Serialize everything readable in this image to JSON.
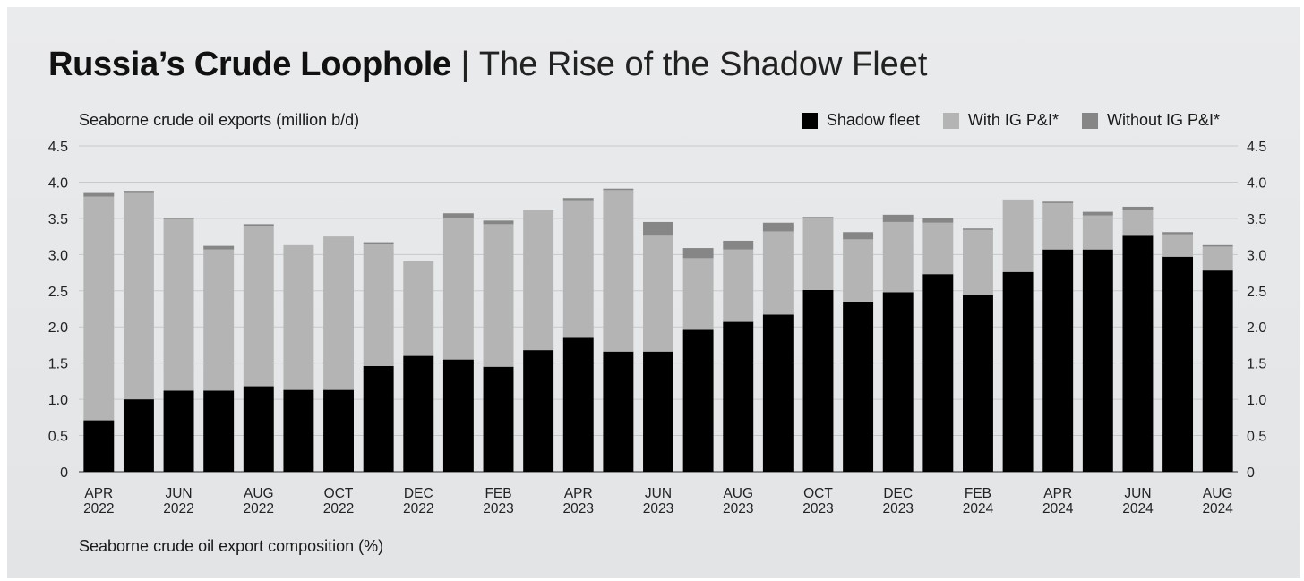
{
  "header": {
    "title_main": "Russia’s Crude Loophole",
    "title_sep": "|",
    "title_sub": "The Rise of the Shadow Fleet"
  },
  "footer": {
    "section_label": "Seaborne crude oil export composition (%)"
  },
  "colors": {
    "shadow": "#000000",
    "with_ig": "#b4b4b4",
    "without_ig": "#868686",
    "grid": "#c8c9cb",
    "background": "#e6e7e9"
  },
  "chart_data": {
    "type": "bar",
    "stacked": true,
    "ylabel": "Seaborne crude oil exports (million b/d)",
    "ylim": [
      0,
      4.5
    ],
    "yticks": [
      "0",
      "0.5",
      "1.0",
      "1.5",
      "2.0",
      "2.5",
      "3.0",
      "3.5",
      "4.0",
      "4.5"
    ],
    "grid": true,
    "legend_position": "top-right",
    "categories": [
      "APR 2022",
      "MAY 2022",
      "JUN 2022",
      "JUL 2022",
      "AUG 2022",
      "SEP 2022",
      "OCT 2022",
      "NOV 2022",
      "DEC 2022",
      "JAN 2023",
      "FEB 2023",
      "MAR 2023",
      "APR 2023",
      "MAY 2023",
      "JUN 2023",
      "JUL 2023",
      "AUG 2023",
      "SEP 2023",
      "OCT 2023",
      "NOV 2023",
      "DEC 2023",
      "JAN 2024",
      "FEB 2024",
      "MAR 2024",
      "APR 2024",
      "MAY 2024",
      "JUN 2024",
      "JUL 2024",
      "AUG 2024"
    ],
    "xtick_labels": [
      {
        "index": 0,
        "line1": "APR",
        "line2": "2022"
      },
      {
        "index": 2,
        "line1": "JUN",
        "line2": "2022"
      },
      {
        "index": 4,
        "line1": "AUG",
        "line2": "2022"
      },
      {
        "index": 6,
        "line1": "OCT",
        "line2": "2022"
      },
      {
        "index": 8,
        "line1": "DEC",
        "line2": "2022"
      },
      {
        "index": 10,
        "line1": "FEB",
        "line2": "2023"
      },
      {
        "index": 12,
        "line1": "APR",
        "line2": "2023"
      },
      {
        "index": 14,
        "line1": "JUN",
        "line2": "2023"
      },
      {
        "index": 16,
        "line1": "AUG",
        "line2": "2023"
      },
      {
        "index": 18,
        "line1": "OCT",
        "line2": "2023"
      },
      {
        "index": 20,
        "line1": "DEC",
        "line2": "2023"
      },
      {
        "index": 22,
        "line1": "FEB",
        "line2": "2024"
      },
      {
        "index": 24,
        "line1": "APR",
        "line2": "2024"
      },
      {
        "index": 26,
        "line1": "JUN",
        "line2": "2024"
      },
      {
        "index": 28,
        "line1": "AUG",
        "line2": "2024"
      }
    ],
    "series": [
      {
        "name": "Shadow fleet",
        "key": "shadow",
        "values": [
          0.71,
          1.0,
          1.12,
          1.12,
          1.18,
          1.13,
          1.13,
          1.46,
          1.6,
          1.55,
          1.45,
          1.68,
          1.85,
          1.66,
          1.66,
          1.96,
          2.07,
          2.17,
          2.51,
          2.35,
          2.48,
          2.73,
          2.44,
          2.76,
          3.07,
          3.07,
          3.26,
          2.97,
          2.78
        ]
      },
      {
        "name": "With IG P&I*",
        "key": "with_ig",
        "values": [
          3.09,
          2.85,
          2.37,
          1.95,
          2.21,
          2.0,
          2.12,
          1.68,
          1.31,
          1.95,
          1.97,
          1.93,
          1.9,
          2.23,
          1.6,
          0.99,
          1.0,
          1.15,
          0.99,
          0.86,
          0.97,
          0.71,
          0.9,
          1.0,
          0.64,
          0.47,
          0.35,
          0.31,
          0.33
        ]
      },
      {
        "name": "Without IG P&I*",
        "key": "without_ig",
        "values": [
          0.05,
          0.03,
          0.02,
          0.05,
          0.03,
          0.0,
          0.0,
          0.03,
          0.0,
          0.07,
          0.05,
          0.0,
          0.03,
          0.02,
          0.19,
          0.14,
          0.12,
          0.12,
          0.02,
          0.1,
          0.1,
          0.06,
          0.02,
          0.0,
          0.02,
          0.05,
          0.05,
          0.03,
          0.02
        ]
      }
    ]
  }
}
